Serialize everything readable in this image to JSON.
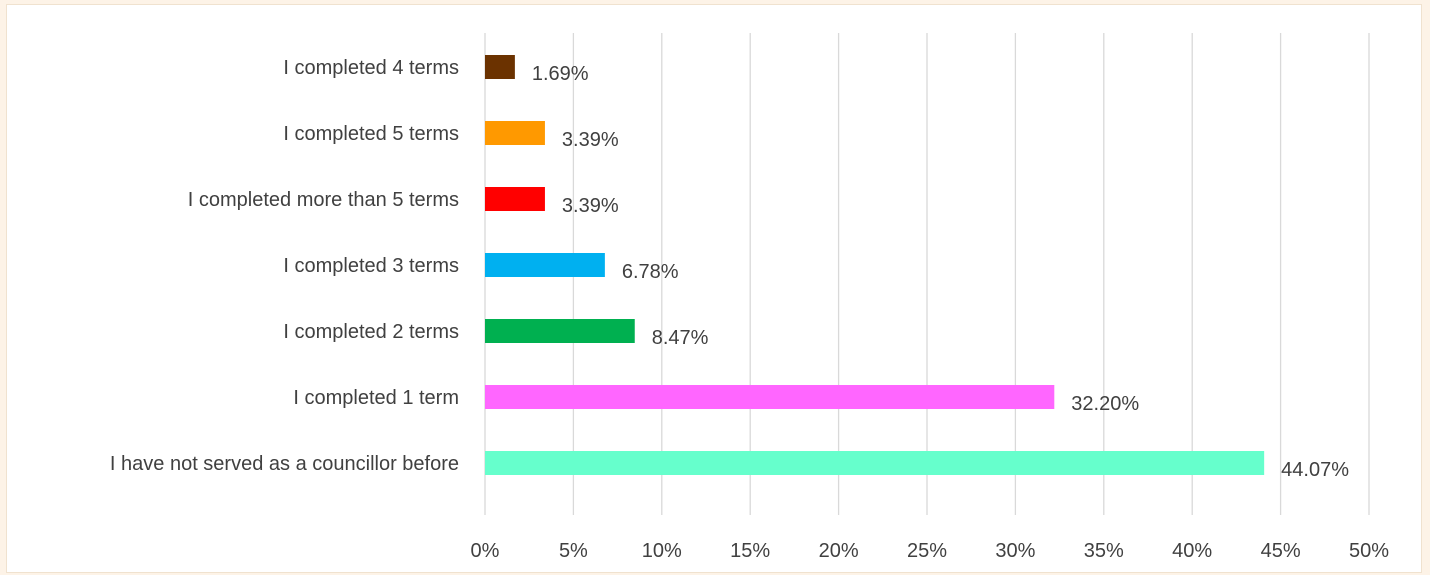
{
  "chart_data": {
    "type": "bar",
    "orientation": "horizontal",
    "categories": [
      "I completed 4 terms",
      "I completed 5 terms",
      "I completed more than 5 terms",
      "I completed 3 terms",
      "I completed 2 terms",
      "I completed 1 term",
      "I have not served as a councillor before"
    ],
    "values": [
      1.69,
      3.39,
      3.39,
      6.78,
      8.47,
      32.2,
      44.07
    ],
    "data_labels": [
      "1.69%",
      "3.39%",
      "3.39%",
      "6.78%",
      "8.47%",
      "32.20%",
      "44.07%"
    ],
    "colors": [
      "#6b3200",
      "#ff9900",
      "#ff0000",
      "#00b0f0",
      "#00b050",
      "#ff66ff",
      "#66ffcc"
    ],
    "x_ticks": [
      "0%",
      "5%",
      "10%",
      "15%",
      "20%",
      "25%",
      "30%",
      "35%",
      "40%",
      "45%",
      "50%"
    ],
    "xlim": [
      0,
      50
    ],
    "grid": "vertical",
    "grid_color": "#d9d9d9",
    "legend": "none"
  }
}
